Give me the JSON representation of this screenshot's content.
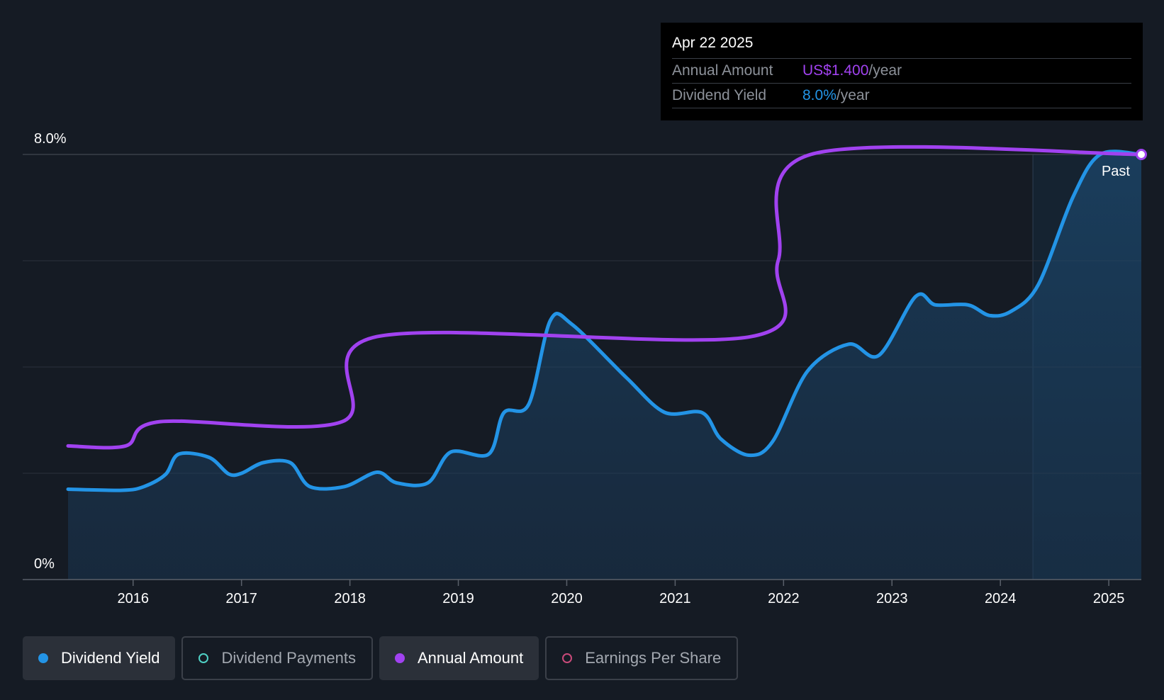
{
  "colors": {
    "background": "#151b24",
    "dividend_yield": "#2394e6",
    "annual_amount": "#a142f0",
    "dividend_payments": "#4fd1c5",
    "earnings_per_share": "#c94a7a"
  },
  "tooltip": {
    "date": "Apr 22 2025",
    "rows": [
      {
        "label": "Annual Amount",
        "value": "US$1.400",
        "unit": "/year",
        "color": "#a142f0"
      },
      {
        "label": "Dividend Yield",
        "value": "8.0%",
        "unit": "/year",
        "color": "#2394e6"
      }
    ]
  },
  "legend": [
    {
      "label": "Dividend Yield",
      "active": true,
      "color": "#2394e6"
    },
    {
      "label": "Dividend Payments",
      "active": false,
      "color": "#4fd1c5"
    },
    {
      "label": "Annual Amount",
      "active": true,
      "color": "#a142f0"
    },
    {
      "label": "Earnings Per Share",
      "active": false,
      "color": "#c94a7a"
    }
  ],
  "chart_data": {
    "type": "line",
    "y_tick_labels": [
      "8.0%",
      "0%"
    ],
    "ylim": [
      0,
      8.0
    ],
    "xlim": [
      2015.4,
      2025.3
    ],
    "x_ticks": [
      2016,
      2017,
      2018,
      2019,
      2020,
      2021,
      2022,
      2023,
      2024,
      2025
    ],
    "grid": true,
    "past_label": "Past",
    "forecast_boundary": 2024.3,
    "annual_amount_ylim": [
      0,
      1.4
    ],
    "series": [
      {
        "name": "Dividend Yield",
        "axis": "yield",
        "color": "#2394e6",
        "points": [
          [
            2015.4,
            1.7
          ],
          [
            2015.9,
            1.68
          ],
          [
            2016.1,
            1.75
          ],
          [
            2016.3,
            1.98
          ],
          [
            2016.42,
            2.36
          ],
          [
            2016.7,
            2.3
          ],
          [
            2016.88,
            1.99
          ],
          [
            2017.0,
            2.0
          ],
          [
            2017.2,
            2.2
          ],
          [
            2017.45,
            2.2
          ],
          [
            2017.63,
            1.75
          ],
          [
            2017.95,
            1.75
          ],
          [
            2018.25,
            2.02
          ],
          [
            2018.43,
            1.82
          ],
          [
            2018.72,
            1.82
          ],
          [
            2018.93,
            2.4
          ],
          [
            2019.28,
            2.36
          ],
          [
            2019.42,
            3.14
          ],
          [
            2019.65,
            3.3
          ],
          [
            2019.85,
            4.88
          ],
          [
            2020.05,
            4.8
          ],
          [
            2020.55,
            3.8
          ],
          [
            2020.9,
            3.15
          ],
          [
            2021.25,
            3.14
          ],
          [
            2021.42,
            2.65
          ],
          [
            2021.68,
            2.34
          ],
          [
            2021.9,
            2.6
          ],
          [
            2022.22,
            3.92
          ],
          [
            2022.6,
            4.43
          ],
          [
            2022.88,
            4.22
          ],
          [
            2023.22,
            5.33
          ],
          [
            2023.4,
            5.17
          ],
          [
            2023.7,
            5.17
          ],
          [
            2023.9,
            4.97
          ],
          [
            2024.1,
            5.05
          ],
          [
            2024.35,
            5.55
          ],
          [
            2024.67,
            7.2
          ],
          [
            2024.92,
            8.0
          ],
          [
            2025.3,
            8.0
          ]
        ]
      },
      {
        "name": "Annual Amount",
        "axis": "amount",
        "color": "#a142f0",
        "points": [
          [
            2015.4,
            0.44
          ],
          [
            2015.93,
            0.44
          ],
          [
            2016.25,
            0.52
          ],
          [
            2017.93,
            0.52
          ],
          [
            2018.25,
            0.8
          ],
          [
            2021.7,
            0.8
          ],
          [
            2021.95,
            1.05
          ],
          [
            2022.25,
            1.4
          ],
          [
            2025.3,
            1.4
          ]
        ]
      }
    ]
  }
}
